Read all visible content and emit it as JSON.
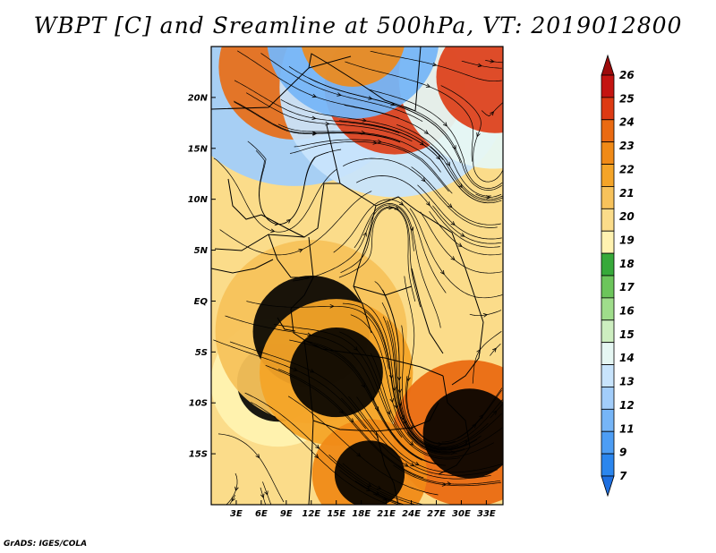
{
  "title": "WBPT [C] and Sreamline at 500hPa, VT: 2019012800",
  "credit": "GrADS: IGES/COLA",
  "map": {
    "variable": "WBPT [C]",
    "level": "500hPa",
    "valid_time": "2019012800",
    "lon_range": [
      0,
      35
    ],
    "lat_range": [
      -20,
      25
    ],
    "lon_ticks": [
      "3E",
      "6E",
      "9E",
      "12E",
      "15E",
      "18E",
      "21E",
      "24E",
      "27E",
      "30E",
      "33E"
    ],
    "lat_ticks": [
      "20N",
      "15N",
      "10N",
      "5N",
      "EQ",
      "5S",
      "10S",
      "15S"
    ]
  },
  "colorbar": {
    "labels": [
      "7",
      "9",
      "11",
      "12",
      "13",
      "14",
      "15",
      "16",
      "17",
      "18",
      "19",
      "20",
      "21",
      "22",
      "23",
      "24",
      "25",
      "26"
    ],
    "colors": [
      "#1e6fe0",
      "#2b86ee",
      "#4d9df4",
      "#76b5f7",
      "#a2cdfa",
      "#c8e4fc",
      "#e6f7f3",
      "#cdeec0",
      "#9fdd8b",
      "#6cc55b",
      "#37a93a",
      "#fff2b0",
      "#fbdc8a",
      "#f7c25b",
      "#f4a428",
      "#f08a17",
      "#ea6a12",
      "#dd3a13",
      "#c41411",
      "#9d0b0b"
    ]
  },
  "fields": [
    {
      "cx": 10,
      "cy": 23,
      "r": 13,
      "c": 4,
      "t": 16
    },
    {
      "cx": 22,
      "cy": 21,
      "r": 12,
      "c": 5,
      "t": 17
    },
    {
      "cx": 34,
      "cy": 22,
      "r": 10,
      "c": 6,
      "t": 17
    },
    {
      "cx": 17,
      "cy": 26,
      "r": 9,
      "c": 3,
      "t": 15
    },
    {
      "cx": 8,
      "cy": -8,
      "r": 7,
      "c": 11,
      "t": 22
    },
    {
      "cx": 12,
      "cy": -3,
      "r": 10,
      "c": 13,
      "t": 22
    },
    {
      "cx": 15,
      "cy": -7,
      "r": 8,
      "c": 14,
      "t": 23
    },
    {
      "cx": 31,
      "cy": -13,
      "r": 8,
      "c": 16,
      "t": 23
    },
    {
      "cx": 19,
      "cy": -17,
      "r": 6,
      "c": 15,
      "t": 22
    }
  ],
  "cyclones": [
    {
      "lon": 8,
      "lat": 9
    },
    {
      "lon": 21.5,
      "lat": 8
    },
    {
      "lon": 27,
      "lat": -11
    },
    {
      "lon": 2,
      "lat": -17
    },
    {
      "lon": 33,
      "lat": 13
    }
  ],
  "stream_seed_count": 95
}
